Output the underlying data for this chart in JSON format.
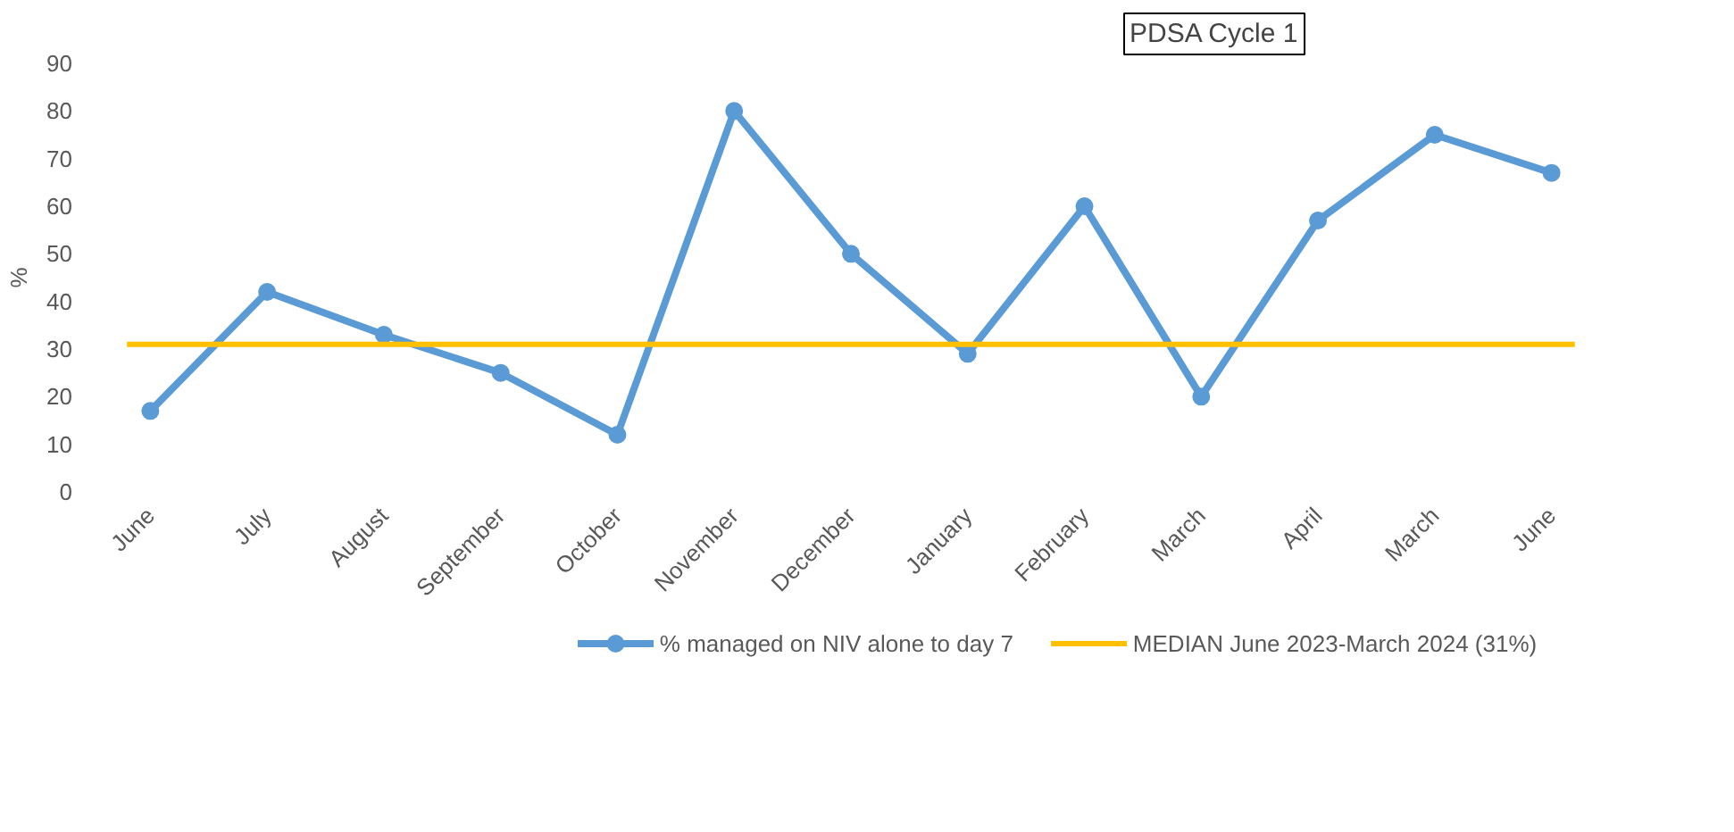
{
  "chart_data": {
    "type": "line",
    "ylabel": "%",
    "categories": [
      "June",
      "July",
      "August",
      "September",
      "October",
      "November",
      "December",
      "January",
      "February",
      "March",
      "April",
      "March",
      "June"
    ],
    "series": [
      {
        "name": "% managed on NIV alone to day 7",
        "color": "#5b9bd5",
        "values": [
          17,
          42,
          33,
          25,
          12,
          80,
          50,
          29,
          60,
          20,
          57,
          75,
          67
        ]
      }
    ],
    "ref_lines": [
      {
        "axis": "y",
        "value": 31,
        "label": "MEDIAN June 2023-March 2024 (31%)",
        "color": "#ffc000"
      }
    ],
    "annotations": [
      "PDSA Cycle 1"
    ],
    "ylim": [
      0,
      90
    ],
    "yticks": [
      0,
      10,
      20,
      30,
      40,
      50,
      60,
      70,
      80,
      90
    ],
    "marker": "circle",
    "line_style": "solid",
    "grid": false,
    "legend": "bottom"
  }
}
